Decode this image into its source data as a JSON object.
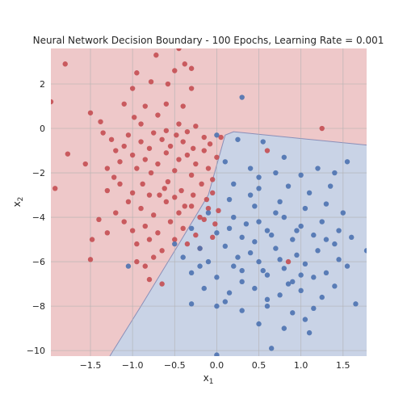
{
  "chart_data": {
    "type": "scatter",
    "title": "Neural Network Decision Boundary - 100 Epochs, Learning Rate = 0.001",
    "xlabel": "x",
    "xlabel_sub": "1",
    "ylabel": "x",
    "ylabel_sub": "2",
    "xlim": [
      -1.97,
      1.78
    ],
    "ylim": [
      -10.25,
      3.6
    ],
    "xticks": [
      -1.5,
      -1.0,
      -0.5,
      0.0,
      0.5,
      1.0,
      1.5
    ],
    "xtick_labels": [
      "−1.5",
      "−1.0",
      "−0.5",
      "0.0",
      "0.5",
      "1.0",
      "1.5"
    ],
    "yticks": [
      2,
      0,
      -2,
      -4,
      -6,
      -8,
      -10
    ],
    "ytick_labels": [
      "2",
      "0",
      "−2",
      "−4",
      "−6",
      "−8",
      "−10"
    ],
    "grid": true,
    "legend": "none",
    "colors": {
      "class0_point": "#c44e52",
      "class1_point": "#4c72b0",
      "class0_region": "#eec8c9",
      "class1_region": "#c9d3e6",
      "grid": "#b0b0b0",
      "boundary": "#8a8fb8"
    },
    "decision_boundary": [
      [
        -1.27,
        -10.25
      ],
      [
        -0.9,
        -8.0
      ],
      [
        -0.45,
        -5.2
      ],
      [
        -0.1,
        -3.0
      ],
      [
        0.1,
        -0.3
      ],
      [
        0.2,
        -0.15
      ],
      [
        1.78,
        -0.75
      ]
    ],
    "series": [
      {
        "class": 0,
        "points": [
          [
            -1.97,
            1.2
          ],
          [
            -1.8,
            2.9
          ],
          [
            -1.5,
            0.7
          ],
          [
            -1.92,
            -2.7
          ],
          [
            -1.77,
            -1.15
          ],
          [
            -1.56,
            -1.6
          ],
          [
            -1.38,
            0.3
          ],
          [
            -1.35,
            -0.2
          ],
          [
            -1.25,
            -0.5
          ],
          [
            -1.2,
            -1.0
          ],
          [
            -1.3,
            -1.8
          ],
          [
            -1.22,
            -2.2
          ],
          [
            -1.15,
            -1.5
          ],
          [
            -1.1,
            -0.8
          ],
          [
            -1.05,
            -0.3
          ],
          [
            -1.0,
            -1.2
          ],
          [
            -0.95,
            -1.8
          ],
          [
            -0.9,
            -0.6
          ],
          [
            -0.88,
            -2.5
          ],
          [
            -0.85,
            -1.4
          ],
          [
            -0.8,
            -0.9
          ],
          [
            -0.78,
            -2.0
          ],
          [
            -0.75,
            -0.2
          ],
          [
            -0.7,
            -1.6
          ],
          [
            -0.68,
            -3.0
          ],
          [
            -0.65,
            -0.5
          ],
          [
            -0.6,
            -1.1
          ],
          [
            -0.58,
            -2.4
          ],
          [
            -0.55,
            -0.8
          ],
          [
            -0.5,
            -1.9
          ],
          [
            -0.48,
            -0.3
          ],
          [
            -0.45,
            -1.4
          ],
          [
            -0.42,
            -2.8
          ],
          [
            -0.4,
            -0.6
          ],
          [
            -0.38,
            -3.5
          ],
          [
            -0.35,
            -1.2
          ],
          [
            -0.3,
            -2.1
          ],
          [
            -0.28,
            -0.9
          ],
          [
            -0.25,
            -1.6
          ],
          [
            -0.2,
            -4.0
          ],
          [
            -0.18,
            -2.5
          ],
          [
            -0.15,
            -1.0
          ],
          [
            -0.12,
            -3.2
          ],
          [
            -0.1,
            -1.8
          ],
          [
            -0.08,
            -0.7
          ],
          [
            -0.05,
            -2.3
          ],
          [
            -0.02,
            -4.3
          ],
          [
            0.0,
            -1.3
          ],
          [
            0.02,
            -3.7
          ],
          [
            0.05,
            -0.4
          ],
          [
            -1.0,
            1.8
          ],
          [
            -0.95,
            2.5
          ],
          [
            -0.78,
            2.1
          ],
          [
            -0.72,
            3.3
          ],
          [
            -0.58,
            2.0
          ],
          [
            -0.5,
            2.6
          ],
          [
            -0.45,
            3.6
          ],
          [
            -0.38,
            2.9
          ],
          [
            -0.3,
            2.7
          ],
          [
            -0.3,
            1.8
          ],
          [
            -0.6,
            1.1
          ],
          [
            -0.85,
            1.0
          ],
          [
            -1.1,
            1.1
          ],
          [
            -0.98,
            0.5
          ],
          [
            -0.7,
            0.6
          ],
          [
            -0.45,
            0.2
          ],
          [
            -0.25,
            0.1
          ],
          [
            -0.4,
            1.0
          ],
          [
            -0.6,
            -0.1
          ],
          [
            -0.9,
            0.2
          ],
          [
            -1.48,
            -5.0
          ],
          [
            -1.5,
            -5.9
          ],
          [
            -1.4,
            -4.1
          ],
          [
            -1.3,
            -4.7
          ],
          [
            -1.2,
            -3.8
          ],
          [
            -1.1,
            -4.2
          ],
          [
            -1.05,
            -3.3
          ],
          [
            -1.0,
            -4.6
          ],
          [
            -0.95,
            -5.2
          ],
          [
            -0.9,
            -3.6
          ],
          [
            -0.85,
            -4.4
          ],
          [
            -0.8,
            -5.0
          ],
          [
            -0.75,
            -3.9
          ],
          [
            -0.7,
            -4.7
          ],
          [
            -0.65,
            -5.5
          ],
          [
            -0.6,
            -3.3
          ],
          [
            -0.55,
            -4.2
          ],
          [
            -0.5,
            -5.0
          ],
          [
            -0.45,
            -3.8
          ],
          [
            -0.4,
            -4.5
          ],
          [
            -0.35,
            -5.2
          ],
          [
            -0.3,
            -3.5
          ],
          [
            -0.25,
            -4.8
          ],
          [
            -0.2,
            -5.4
          ],
          [
            -0.15,
            -4.1
          ],
          [
            -0.1,
            -3.6
          ],
          [
            -0.05,
            -4.9
          ],
          [
            -0.85,
            -6.2
          ],
          [
            -0.8,
            -6.8
          ],
          [
            -0.75,
            -5.8
          ],
          [
            -0.65,
            -7.0
          ],
          [
            -1.3,
            -2.8
          ],
          [
            -1.15,
            -2.5
          ],
          [
            -1.0,
            -2.9
          ],
          [
            -0.8,
            -3.0
          ],
          [
            -0.62,
            -2.7
          ],
          [
            -0.5,
            -3.1
          ],
          [
            -0.28,
            -3.0
          ],
          [
            0.6,
            -1.0
          ],
          [
            1.25,
            0.0
          ],
          [
            0.85,
            -6.0
          ],
          [
            -0.95,
            -6.0
          ],
          [
            -0.05,
            -2.9
          ],
          [
            -0.35,
            -0.15
          ],
          [
            -0.15,
            -0.4
          ]
        ]
      },
      {
        "class": 1,
        "points": [
          [
            0.3,
            1.4
          ],
          [
            -1.05,
            -6.2
          ],
          [
            0.0,
            -10.2
          ],
          [
            0.65,
            -9.9
          ],
          [
            0.0,
            -0.3
          ],
          [
            0.25,
            -0.5
          ],
          [
            0.55,
            -0.6
          ],
          [
            0.8,
            -1.3
          ],
          [
            0.1,
            -1.5
          ],
          [
            0.4,
            -1.8
          ],
          [
            0.7,
            -2.0
          ],
          [
            1.0,
            -2.1
          ],
          [
            1.2,
            -1.8
          ],
          [
            1.4,
            -2.0
          ],
          [
            1.55,
            -1.5
          ],
          [
            0.2,
            -2.5
          ],
          [
            0.5,
            -2.7
          ],
          [
            0.85,
            -2.6
          ],
          [
            1.1,
            -2.9
          ],
          [
            1.35,
            -2.6
          ],
          [
            0.15,
            -3.2
          ],
          [
            0.45,
            -3.5
          ],
          [
            0.75,
            -3.3
          ],
          [
            1.05,
            -3.6
          ],
          [
            1.3,
            -3.4
          ],
          [
            1.5,
            -3.8
          ],
          [
            -0.1,
            -3.8
          ],
          [
            0.2,
            -4.0
          ],
          [
            0.5,
            -4.2
          ],
          [
            0.8,
            -4.0
          ],
          [
            1.0,
            -4.4
          ],
          [
            1.25,
            -4.2
          ],
          [
            1.45,
            -4.6
          ],
          [
            -0.3,
            -4.5
          ],
          [
            0.0,
            -4.7
          ],
          [
            0.3,
            -4.9
          ],
          [
            0.6,
            -4.6
          ],
          [
            0.9,
            -5.0
          ],
          [
            1.15,
            -4.8
          ],
          [
            1.4,
            -5.2
          ],
          [
            1.6,
            -4.9
          ],
          [
            -0.5,
            -5.2
          ],
          [
            -0.2,
            -5.4
          ],
          [
            0.1,
            -5.3
          ],
          [
            0.4,
            -5.6
          ],
          [
            0.7,
            -5.4
          ],
          [
            0.95,
            -5.7
          ],
          [
            1.2,
            -5.5
          ],
          [
            1.45,
            -5.9
          ],
          [
            -0.4,
            -5.8
          ],
          [
            -0.1,
            -6.0
          ],
          [
            0.2,
            -6.2
          ],
          [
            0.5,
            -6.0
          ],
          [
            0.8,
            -6.3
          ],
          [
            1.05,
            -6.1
          ],
          [
            1.3,
            -6.5
          ],
          [
            1.55,
            -6.2
          ],
          [
            1.78,
            -5.5
          ],
          [
            -0.3,
            -6.5
          ],
          [
            0.0,
            -6.7
          ],
          [
            0.3,
            -6.9
          ],
          [
            0.6,
            -6.6
          ],
          [
            0.9,
            -6.9
          ],
          [
            1.15,
            -6.7
          ],
          [
            1.4,
            -7.1
          ],
          [
            -0.15,
            -7.2
          ],
          [
            0.15,
            -7.4
          ],
          [
            0.45,
            -7.2
          ],
          [
            0.75,
            -7.5
          ],
          [
            1.0,
            -7.3
          ],
          [
            1.25,
            -7.6
          ],
          [
            -0.3,
            -7.9
          ],
          [
            0.0,
            -8.0
          ],
          [
            0.3,
            -8.2
          ],
          [
            0.6,
            -8.0
          ],
          [
            0.9,
            -8.3
          ],
          [
            1.15,
            -8.1
          ],
          [
            1.65,
            -7.9
          ],
          [
            0.5,
            -8.8
          ],
          [
            0.8,
            -9.0
          ],
          [
            1.1,
            -9.2
          ],
          [
            1.05,
            -8.6
          ],
          [
            0.35,
            -4.3
          ],
          [
            0.65,
            -4.8
          ],
          [
            0.25,
            -5.8
          ],
          [
            0.55,
            -6.4
          ],
          [
            0.85,
            -7.0
          ],
          [
            0.4,
            -3.0
          ],
          [
            0.7,
            -3.8
          ],
          [
            0.95,
            -4.6
          ],
          [
            0.15,
            -4.5
          ],
          [
            0.45,
            -5.1
          ],
          [
            0.75,
            -5.9
          ],
          [
            1.0,
            -6.6
          ],
          [
            0.3,
            -6.4
          ],
          [
            0.6,
            -7.7
          ],
          [
            -0.2,
            -6.2
          ],
          [
            0.1,
            -7.8
          ],
          [
            1.3,
            -5.0
          ],
          [
            0.5,
            -2.2
          ]
        ]
      }
    ]
  }
}
